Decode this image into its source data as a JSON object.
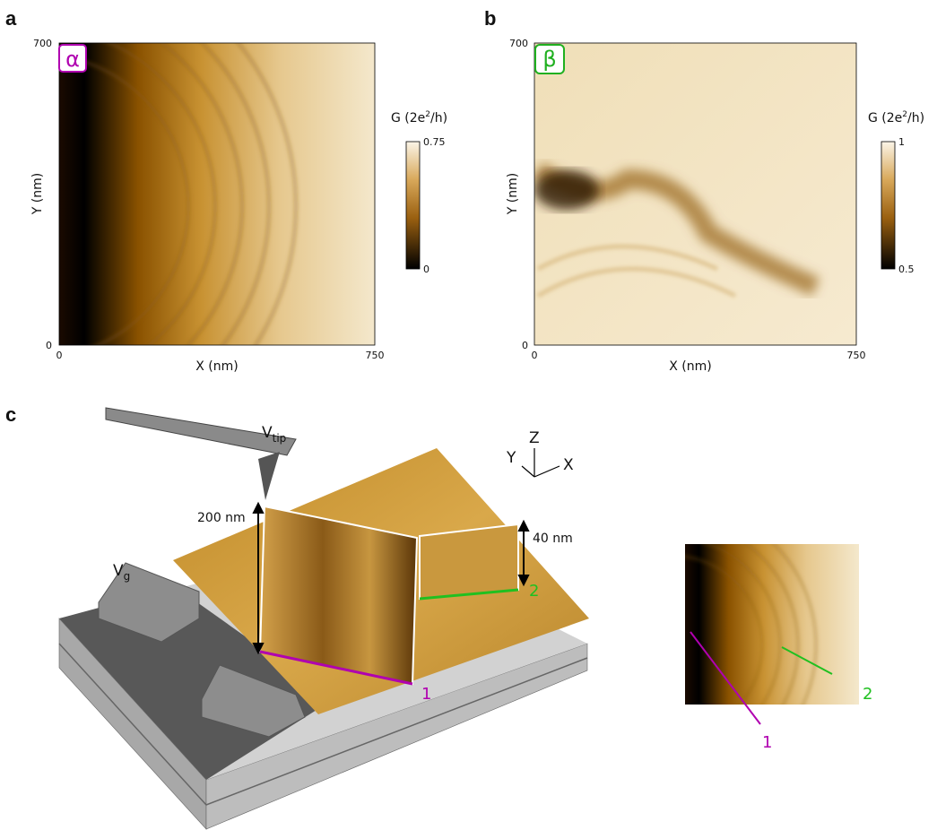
{
  "panels": [
    {
      "label": "a",
      "badge": "α",
      "x_axis": {
        "title": "X (nm)",
        "ticks": [
          "0",
          "750"
        ]
      },
      "y_axis": {
        "title": "Y (nm)",
        "ticks": [
          "0",
          "700"
        ]
      },
      "colorbar": {
        "title": {
          "base": "G (2e",
          "sup": "2",
          "tail": "/h)"
        },
        "ticks": [
          "0",
          "0.75"
        ]
      }
    },
    {
      "label": "b",
      "badge": "β",
      "x_axis": {
        "title": "X (nm)",
        "ticks": [
          "0",
          "750"
        ]
      },
      "y_axis": {
        "title": "Y (nm)",
        "ticks": [
          "0",
          "700"
        ]
      },
      "colorbar": {
        "title": {
          "base": "G (2e",
          "sup": "2",
          "tail": "/h)"
        },
        "ticks": [
          "0.5",
          "1"
        ]
      }
    },
    {
      "label": "c",
      "tip": {
        "base": "V",
        "sub": "tip"
      },
      "gate": {
        "base": "V",
        "sub": "g"
      },
      "heights": [
        "200 nm",
        "40 nm"
      ],
      "axes": [
        "Z",
        "Y",
        "X"
      ],
      "cuts": [
        "1",
        "2"
      ],
      "inset_cuts": [
        "1",
        "2"
      ]
    }
  ]
}
